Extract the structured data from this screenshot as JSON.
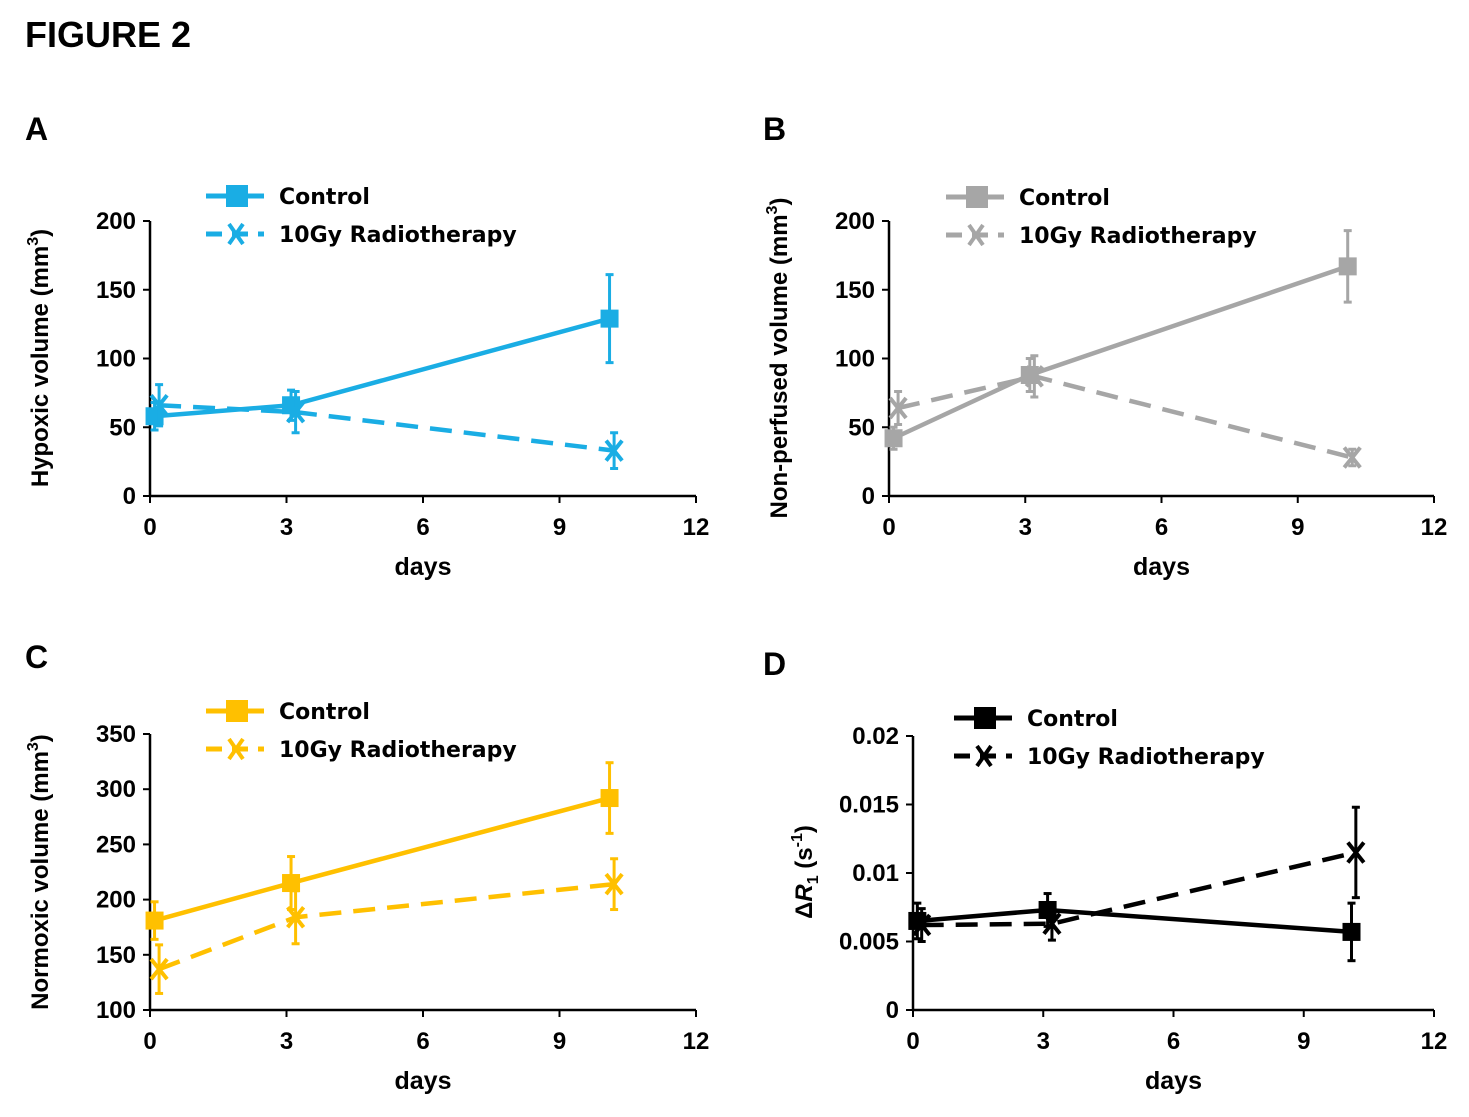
{
  "figure_title": "FIGURE 2",
  "chart_data": [
    {
      "panel": "A",
      "type": "line",
      "xlabel": "days",
      "ylabel": "Hypoxic volume (mm",
      "ylabel_sup": "3",
      "ylabel_tail": ")",
      "xlim": [
        0,
        12
      ],
      "ylim": [
        0,
        200
      ],
      "xticks": [
        "0",
        "3",
        "6",
        "9",
        "12"
      ],
      "yticks": [
        "0",
        "50",
        "100",
        "150",
        "200"
      ],
      "legend_position": "top",
      "color": "#1AADE4",
      "series": [
        {
          "name": "Control",
          "marker": "square",
          "dash": false,
          "x": [
            0.1,
            3.1,
            10.1
          ],
          "y": [
            58,
            66,
            129
          ],
          "err": [
            10,
            11,
            32
          ]
        },
        {
          "name": "10Gy Radiotherapy",
          "marker": "x",
          "dash": true,
          "x": [
            0.2,
            3.2,
            10.2
          ],
          "y": [
            66,
            61,
            33
          ],
          "err": [
            15,
            15,
            13
          ]
        }
      ]
    },
    {
      "panel": "B",
      "type": "line",
      "xlabel": "days",
      "ylabel": "Non-perfused volume (mm",
      "ylabel_sup": "3",
      "ylabel_tail": ")",
      "xlim": [
        0,
        12
      ],
      "ylim": [
        0,
        200
      ],
      "xticks": [
        "0",
        "3",
        "6",
        "9",
        "12"
      ],
      "yticks": [
        "0",
        "50",
        "100",
        "150",
        "200"
      ],
      "legend_position": "top",
      "color": "#A6A6A6",
      "series": [
        {
          "name": "Control",
          "marker": "square",
          "dash": false,
          "x": [
            0.1,
            3.1,
            10.1
          ],
          "y": [
            42,
            88,
            167
          ],
          "err": [
            8,
            12,
            26
          ]
        },
        {
          "name": "10Gy Radiotherapy",
          "marker": "x",
          "dash": true,
          "x": [
            0.2,
            3.2,
            10.2
          ],
          "y": [
            64,
            87,
            28
          ],
          "err": [
            12,
            15,
            6
          ]
        }
      ]
    },
    {
      "panel": "C",
      "type": "line",
      "xlabel": "days",
      "ylabel": "Normoxic  volume (mm",
      "ylabel_sup": "3",
      "ylabel_tail": ")",
      "xlim": [
        0,
        12
      ],
      "ylim": [
        100,
        350
      ],
      "xticks": [
        "0",
        "3",
        "6",
        "9",
        "12"
      ],
      "yticks": [
        "100",
        "150",
        "200",
        "250",
        "300",
        "350"
      ],
      "legend_position": "top",
      "color": "#FFC000",
      "series": [
        {
          "name": "Control",
          "marker": "square",
          "dash": false,
          "x": [
            0.1,
            3.1,
            10.1
          ],
          "y": [
            181,
            215,
            292
          ],
          "err": [
            17,
            24,
            32
          ]
        },
        {
          "name": "10Gy Radiotherapy",
          "marker": "x",
          "dash": true,
          "x": [
            0.2,
            3.2,
            10.2
          ],
          "y": [
            137,
            184,
            214
          ],
          "err": [
            22,
            24,
            23
          ]
        }
      ]
    },
    {
      "panel": "D",
      "type": "line",
      "xlabel": "days",
      "ylabel_prefix": "ΔR",
      "ylabel_sub": "1",
      "ylabel_mid": " (s",
      "ylabel_sup": "-1",
      "ylabel_tail": ")",
      "xlim": [
        0,
        12
      ],
      "ylim": [
        0,
        0.02
      ],
      "xticks": [
        "0",
        "3",
        "6",
        "9",
        "12"
      ],
      "yticks": [
        "0",
        "0.005",
        "0.01",
        "0.015",
        "0.02"
      ],
      "legend_position": "top",
      "color": "#000000",
      "series": [
        {
          "name": "Control",
          "marker": "square",
          "dash": false,
          "x": [
            0.1,
            3.1,
            10.1
          ],
          "y": [
            0.0065,
            0.0073,
            0.0057
          ],
          "err": [
            0.0013,
            0.0012,
            0.0021
          ]
        },
        {
          "name": "10Gy Radiotherapy",
          "marker": "x",
          "dash": true,
          "x": [
            0.2,
            3.2,
            10.2
          ],
          "y": [
            0.0062,
            0.0063,
            0.0115
          ],
          "err": [
            0.0012,
            0.0012,
            0.0033
          ]
        }
      ]
    }
  ]
}
